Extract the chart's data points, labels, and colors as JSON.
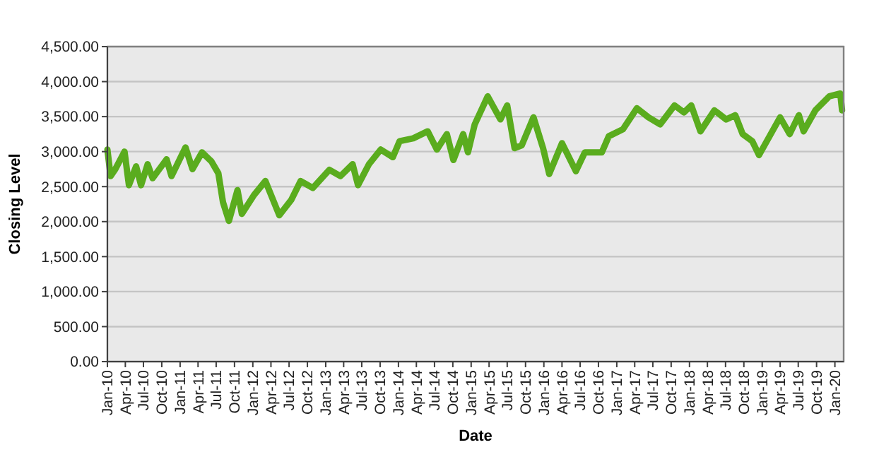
{
  "chart_data": {
    "type": "line",
    "xlabel": "Date",
    "ylabel": "Closing Level",
    "grid": "y",
    "marker": "none",
    "line_style": "solid",
    "xlim": [
      "2010-01-01",
      "2020-02-14"
    ],
    "xticks": [
      {
        "value": "2010-01-01",
        "label": "Jan-10"
      },
      {
        "value": "2010-04-01",
        "label": "Apr-10"
      },
      {
        "value": "2010-07-01",
        "label": "Jul-10"
      },
      {
        "value": "2010-10-01",
        "label": "Oct-10"
      },
      {
        "value": "2011-01-01",
        "label": "Jan-11"
      },
      {
        "value": "2011-04-01",
        "label": "Apr-11"
      },
      {
        "value": "2011-07-01",
        "label": "Jul-11"
      },
      {
        "value": "2011-10-01",
        "label": "Oct-11"
      },
      {
        "value": "2012-01-01",
        "label": "Jan-12"
      },
      {
        "value": "2012-04-01",
        "label": "Apr-12"
      },
      {
        "value": "2012-07-01",
        "label": "Jul-12"
      },
      {
        "value": "2012-10-01",
        "label": "Oct-12"
      },
      {
        "value": "2013-01-01",
        "label": "Jan-13"
      },
      {
        "value": "2013-04-01",
        "label": "Apr-13"
      },
      {
        "value": "2013-07-01",
        "label": "Jul-13"
      },
      {
        "value": "2013-10-01",
        "label": "Oct-13"
      },
      {
        "value": "2014-01-01",
        "label": "Jan-14"
      },
      {
        "value": "2014-04-01",
        "label": "Apr-14"
      },
      {
        "value": "2014-07-01",
        "label": "Jul-14"
      },
      {
        "value": "2014-10-01",
        "label": "Oct-14"
      },
      {
        "value": "2015-01-01",
        "label": "Jan-15"
      },
      {
        "value": "2015-04-01",
        "label": "Apr-15"
      },
      {
        "value": "2015-07-01",
        "label": "Jul-15"
      },
      {
        "value": "2015-10-01",
        "label": "Oct-15"
      },
      {
        "value": "2016-01-01",
        "label": "Jan-16"
      },
      {
        "value": "2016-04-01",
        "label": "Apr-16"
      },
      {
        "value": "2016-07-01",
        "label": "Jul-16"
      },
      {
        "value": "2016-10-01",
        "label": "Oct-16"
      },
      {
        "value": "2017-01-01",
        "label": "Jan-17"
      },
      {
        "value": "2017-04-01",
        "label": "Apr-17"
      },
      {
        "value": "2017-07-01",
        "label": "Jul-17"
      },
      {
        "value": "2017-10-01",
        "label": "Oct-17"
      },
      {
        "value": "2018-01-01",
        "label": "Jan-18"
      },
      {
        "value": "2018-04-01",
        "label": "Apr-18"
      },
      {
        "value": "2018-07-01",
        "label": "Jul-18"
      },
      {
        "value": "2018-10-01",
        "label": "Oct-18"
      },
      {
        "value": "2019-01-01",
        "label": "Jan-19"
      },
      {
        "value": "2019-04-01",
        "label": "Apr-19"
      },
      {
        "value": "2019-07-01",
        "label": "Jul-19"
      },
      {
        "value": "2019-10-01",
        "label": "Oct-19"
      },
      {
        "value": "2020-01-01",
        "label": "Jan-20"
      }
    ],
    "ylim": [
      0,
      4500
    ],
    "yticks": [
      {
        "value": 0,
        "label": "0.00"
      },
      {
        "value": 500,
        "label": "500.00"
      },
      {
        "value": 1000,
        "label": "1,000.00"
      },
      {
        "value": 1500,
        "label": "1,500.00"
      },
      {
        "value": 2000,
        "label": "2,000.00"
      },
      {
        "value": 2500,
        "label": "2,500.00"
      },
      {
        "value": 3000,
        "label": "3,000.00"
      },
      {
        "value": 3500,
        "label": "3,500.00"
      },
      {
        "value": 4000,
        "label": "4,000.00"
      },
      {
        "value": 4500,
        "label": "4,500.00"
      }
    ],
    "series": [
      {
        "color": "#5aac1e",
        "x": [
          "2010-01-01",
          "2010-01-17",
          "2010-02-10",
          "2010-03-28",
          "2010-04-19",
          "2010-05-25",
          "2010-06-19",
          "2010-07-22",
          "2010-08-16",
          "2010-10-25",
          "2010-11-19",
          "2011-01-28",
          "2011-03-04",
          "2011-04-21",
          "2011-06-07",
          "2011-07-12",
          "2011-08-04",
          "2011-09-03",
          "2011-10-16",
          "2011-11-07",
          "2012-01-07",
          "2012-03-04",
          "2012-05-13",
          "2012-07-12",
          "2012-08-28",
          "2012-10-28",
          "2013-01-19",
          "2013-03-16",
          "2013-05-16",
          "2013-06-12",
          "2013-08-06",
          "2013-10-04",
          "2013-12-04",
          "2014-01-07",
          "2014-03-16",
          "2014-05-28",
          "2014-07-13",
          "2014-09-01",
          "2014-10-04",
          "2014-11-22",
          "2014-12-16",
          "2015-01-19",
          "2015-03-25",
          "2015-05-28",
          "2015-07-01",
          "2015-08-07",
          "2015-09-12",
          "2015-11-10",
          "2015-12-28",
          "2016-01-28",
          "2016-04-01",
          "2016-06-10",
          "2016-07-25",
          "2016-10-18",
          "2016-11-22",
          "2017-02-01",
          "2017-04-12",
          "2017-06-09",
          "2017-08-07",
          "2017-10-18",
          "2017-12-04",
          "2018-01-10",
          "2018-02-25",
          "2018-05-06",
          "2018-07-04",
          "2018-08-19",
          "2018-09-25",
          "2018-11-12",
          "2018-12-16",
          "2019-04-01",
          "2019-05-19",
          "2019-07-04",
          "2019-07-28",
          "2019-09-25",
          "2019-12-04",
          "2020-01-28",
          "2020-02-06"
        ],
        "values": [
          3030,
          2650,
          2750,
          3000,
          2520,
          2790,
          2520,
          2820,
          2620,
          2890,
          2650,
          3060,
          2750,
          2990,
          2860,
          2690,
          2280,
          2010,
          2450,
          2110,
          2380,
          2580,
          2090,
          2310,
          2580,
          2480,
          2740,
          2650,
          2820,
          2520,
          2820,
          3030,
          2920,
          3150,
          3190,
          3290,
          3030,
          3250,
          2880,
          3250,
          2990,
          3390,
          3790,
          3460,
          3660,
          3050,
          3090,
          3490,
          3050,
          2680,
          3120,
          2720,
          2990,
          2990,
          3220,
          3320,
          3620,
          3490,
          3390,
          3660,
          3560,
          3660,
          3290,
          3590,
          3460,
          3520,
          3250,
          3150,
          2950,
          3490,
          3250,
          3520,
          3290,
          3590,
          3790,
          3830,
          3590
        ]
      }
    ]
  }
}
